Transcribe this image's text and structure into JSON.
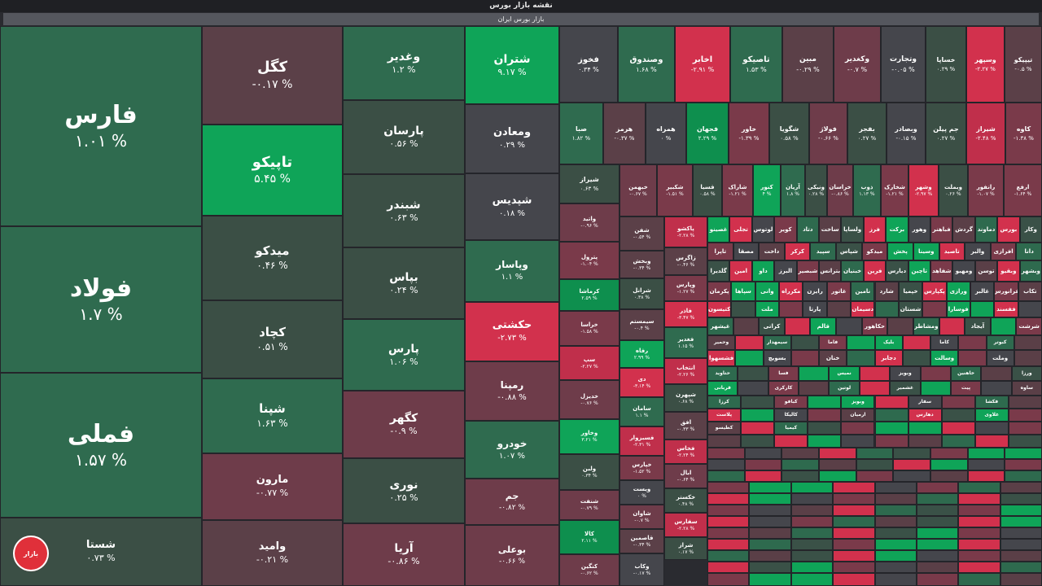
{
  "header": {
    "title": "نقشه بازار بورس",
    "subtitle": "بازار بورس ایران"
  },
  "logo": {
    "text": "بازار",
    "color": "#e0303a"
  },
  "colors": {
    "strong_up": "#0fa458",
    "up": "#2e6a4e",
    "weak_up": "#3a5147",
    "neutral": "#45464c",
    "weak_down": "#5a3f47",
    "down": "#7a3a4a",
    "strong_down": "#d2314d"
  },
  "tiles": [
    {
      "name": "فارس",
      "change": "۱.۰۱ %",
      "color": "#2f6b4f"
    },
    {
      "name": "فولاد",
      "change": "۱.۷ %",
      "color": "#2f6b4f"
    },
    {
      "name": "فملی",
      "change": "۱.۵۷ %",
      "color": "#2f6b4f"
    },
    {
      "name": "شستا",
      "change": "۰.۷۳ %",
      "color": "#3b4f45"
    },
    {
      "name": "کگل",
      "change": "-۰.۱۷ %",
      "color": "#5b4048"
    },
    {
      "name": "تاپیکو",
      "change": "۵.۴۵ %",
      "color": "#0fa458"
    },
    {
      "name": "میدکو",
      "change": "۰.۴۶ %",
      "color": "#3b4f45"
    },
    {
      "name": "کچاد",
      "change": "۰.۵۱ %",
      "color": "#3b4f45"
    },
    {
      "name": "شپنا",
      "change": "۱.۶۳ %",
      "color": "#2f6b4f"
    },
    {
      "name": "مارون",
      "change": "-۰.۷۷ %",
      "color": "#6e3c4a"
    },
    {
      "name": "وامید",
      "change": "-۰.۲۱ %",
      "color": "#5b4048"
    },
    {
      "name": "وغدیر",
      "change": "۱.۲ %",
      "color": "#2f6b4f"
    },
    {
      "name": "پارسان",
      "change": "۰.۵۶ %",
      "color": "#3b4f45"
    },
    {
      "name": "شبندر",
      "change": "۰.۶۳ %",
      "color": "#3b4f45"
    },
    {
      "name": "بپاس",
      "change": "۰.۲۴ %",
      "color": "#3b4f45"
    },
    {
      "name": "پارس",
      "change": "۱.۰۶ %",
      "color": "#2f6b4f"
    },
    {
      "name": "کگهر",
      "change": "-۰.۹ %",
      "color": "#6e3c4a"
    },
    {
      "name": "نوری",
      "change": "۰.۲۵ %",
      "color": "#3b4f45"
    },
    {
      "name": "آریا",
      "change": "-۰.۸۶ %",
      "color": "#6e3c4a"
    },
    {
      "name": "شتران",
      "change": "۹.۱۷ %",
      "color": "#0fa458"
    },
    {
      "name": "ومعادن",
      "change": "۰.۲۹ %",
      "color": "#45464c"
    },
    {
      "name": "شپدیس",
      "change": "۰.۱۸ %",
      "color": "#45464c"
    },
    {
      "name": "وپاسار",
      "change": "۱.۱ %",
      "color": "#2f6b4f"
    },
    {
      "name": "حکشتی",
      "change": "-۲.۷۳ %",
      "color": "#d2314d"
    },
    {
      "name": "رمپنا",
      "change": "-۰.۸۸ %",
      "color": "#6e3c4a"
    },
    {
      "name": "خودرو",
      "change": "۱.۰۷ %",
      "color": "#2f6b4f"
    },
    {
      "name": "جم",
      "change": "-۰.۸۲ %",
      "color": "#6e3c4a"
    },
    {
      "name": "بوعلی",
      "change": "-۰.۶۶ %",
      "color": "#6e3c4a"
    },
    {
      "name": "فخوز",
      "change": "۰.۳۴ %",
      "color": "#45464c"
    },
    {
      "name": "وصندوق",
      "change": "۱.۶۸ %",
      "color": "#2f6b4f"
    },
    {
      "name": "اخابر",
      "change": "-۲.۹۱ %",
      "color": "#d2314d"
    },
    {
      "name": "تاصیکو",
      "change": "۱.۵۳ %",
      "color": "#2f6b4f"
    },
    {
      "name": "مبین",
      "change": "-۰.۲۹ %",
      "color": "#5b4048"
    },
    {
      "name": "وکغدیر",
      "change": "-۰.۷ %",
      "color": "#6e3c4a"
    },
    {
      "name": "وتجارت",
      "change": "-۰.۰۵ %",
      "color": "#45464c"
    },
    {
      "name": "خساپا",
      "change": "۰.۲۹ %",
      "color": "#3b4f45"
    },
    {
      "name": "وسپهر",
      "change": "-۲.۲۷ %",
      "color": "#d2314d"
    },
    {
      "name": "تیپیکو",
      "change": "-۰.۵ %",
      "color": "#5b4048"
    },
    {
      "name": "صبا",
      "change": "۱.۸۲ %",
      "color": "#2f6b4f"
    },
    {
      "name": "هرمز",
      "change": "-۰.۳۷ %",
      "color": "#5b4048"
    },
    {
      "name": "همراه",
      "change": "۰ %",
      "color": "#45464c"
    },
    {
      "name": "فجهان",
      "change": "۲.۲۹ %",
      "color": "#0e8f4e"
    },
    {
      "name": "خاور",
      "change": "-۱.۳۹ %",
      "color": "#7a3a4a"
    },
    {
      "name": "شگویا",
      "change": "۰.۵۸ %",
      "color": "#3b4f45"
    },
    {
      "name": "فولاژ",
      "change": "-۰.۶۶ %",
      "color": "#6e3c4a"
    },
    {
      "name": "بفجر",
      "change": "۰.۲۷ %",
      "color": "#3b4f45"
    },
    {
      "name": "وبصادر",
      "change": "-۰.۱۵ %",
      "color": "#45464c"
    },
    {
      "name": "جم پیلن",
      "change": "۰.۲۷ %",
      "color": "#3b4f45"
    },
    {
      "name": "شیراز",
      "change": "-۲.۴۸ %",
      "color": "#c02f4b"
    },
    {
      "name": "کاوه",
      "change": "-۱.۳۸ %",
      "color": "#7a3a4a"
    },
    {
      "name": "شیراز",
      "change": "۰.۶۳ %",
      "color": "#3b4f45"
    },
    {
      "name": "خبهمن",
      "change": "-۰.۶۷ %",
      "color": "#6e3c4a"
    },
    {
      "name": "شکبیر",
      "change": "-۱.۵۱ %",
      "color": "#7a3a4a"
    },
    {
      "name": "قسیا",
      "change": "۰.۵۸ %",
      "color": "#3b4f45"
    },
    {
      "name": "شاراک",
      "change": "-۱.۲۱ %",
      "color": "#7a3a4a"
    },
    {
      "name": "کنور",
      "change": "۴ %",
      "color": "#0fa458"
    },
    {
      "name": "آریان",
      "change": "۱.۸ %",
      "color": "#2f6b4f"
    },
    {
      "name": "ونیکی",
      "change": "۰.۲۸ %",
      "color": "#3b4f45"
    },
    {
      "name": "خراسان",
      "change": "-۰.۸۶ %",
      "color": "#6e3c4a"
    },
    {
      "name": "ذوب",
      "change": "۱.۱۳ %",
      "color": "#2f6b4f"
    },
    {
      "name": "شخارک",
      "change": "-۱.۲۱ %",
      "color": "#7a3a4a"
    },
    {
      "name": "وشهر",
      "change": "-۲.۹۷ %",
      "color": "#d2314d"
    },
    {
      "name": "وبملت",
      "change": "۰.۲۶ %",
      "color": "#3b4f45"
    },
    {
      "name": "رانفور",
      "change": "-۱.۰۷ %",
      "color": "#7a3a4a"
    },
    {
      "name": "ارفع",
      "change": "-۱.۶۴ %",
      "color": "#7a3a4a"
    },
    {
      "name": "واتید",
      "change": "-۰.۹۶ %",
      "color": "#6e3c4a"
    },
    {
      "name": "شفن",
      "change": "-۰.۵۴ %",
      "color": "#5b4048"
    },
    {
      "name": "پاکشو",
      "change": "-۲.۲۸ %",
      "color": "#c02f4b"
    },
    {
      "name": "پترول",
      "change": "-۱.۰۴ %",
      "color": "#7a3a4a"
    },
    {
      "name": "وبخش",
      "change": "-۰.۳۴ %",
      "color": "#5b4048"
    },
    {
      "name": "زاگرس",
      "change": "-۰.۴۶ %",
      "color": "#5b4048"
    },
    {
      "name": "کرماشا",
      "change": "۲.۵۹ %",
      "color": "#0e8f4e"
    },
    {
      "name": "شرانل",
      "change": "۰.۳۸ %",
      "color": "#3b4f45"
    },
    {
      "name": "وپارس",
      "change": "-۱.۲۷ %",
      "color": "#7a3a4a"
    },
    {
      "name": "خراسا",
      "change": "-۱.۵۸ %",
      "color": "#7a3a4a"
    },
    {
      "name": "سیمستم",
      "change": "-۰.۴ %",
      "color": "#5b4048"
    },
    {
      "name": "فاذر",
      "change": "-۳.۴۷ %",
      "color": "#d2314d"
    },
    {
      "name": "سپ",
      "change": "-۲.۲۷ %",
      "color": "#c02f4b"
    },
    {
      "name": "رفاه",
      "change": "۲.۹۹ %",
      "color": "#0fa458"
    },
    {
      "name": "فغدیر",
      "change": "۱.۱۵ %",
      "color": "#2f6b4f"
    },
    {
      "name": "خدیزل",
      "change": "-۰.۷۶ %",
      "color": "#6e3c4a"
    },
    {
      "name": "دی",
      "change": "-۳.۱۴ %",
      "color": "#d2314d"
    },
    {
      "name": "انتخاب",
      "change": "-۲.۲۶ %",
      "color": "#c02f4b"
    },
    {
      "name": "وخاور",
      "change": "۳.۲۱ %",
      "color": "#0fa458"
    },
    {
      "name": "سامان",
      "change": "۱.۱ %",
      "color": "#2f6b4f"
    },
    {
      "name": "شپهرن",
      "change": "۰.۶۸ %",
      "color": "#3b4f45"
    },
    {
      "name": "ولبن",
      "change": "۰.۳۴ %",
      "color": "#3b4f45"
    },
    {
      "name": "فسبزوار",
      "change": "-۲.۳۱ %",
      "color": "#c02f4b"
    },
    {
      "name": "افق",
      "change": "-۰.۳۳ %",
      "color": "#5b4048"
    },
    {
      "name": "شنفت",
      "change": "-۰.۷۹ %",
      "color": "#6e3c4a"
    },
    {
      "name": "خپارس",
      "change": "-۱.۵۲ %",
      "color": "#7a3a4a"
    },
    {
      "name": "فخاس",
      "change": "-۲.۲۴ %",
      "color": "#c02f4b"
    },
    {
      "name": "کالا",
      "change": "۲.۱۱ %",
      "color": "#0e8f4e"
    },
    {
      "name": "ویست",
      "change": "۰ %",
      "color": "#45464c"
    },
    {
      "name": "ابال",
      "change": "-۰.۶۴ %",
      "color": "#6e3c4a"
    },
    {
      "name": "کنگین",
      "change": "-۰.۶۲ %",
      "color": "#6e3c4a"
    },
    {
      "name": "شاوان",
      "change": "-۰.۷ %",
      "color": "#6e3c4a"
    },
    {
      "name": "خکستر",
      "change": "۰.۴۸ %",
      "color": "#3b4f45"
    },
    {
      "name": "قاصمین",
      "change": "-۰.۳۴ %",
      "color": "#5b4048"
    },
    {
      "name": "سفارس",
      "change": "-۲.۲۸ %",
      "color": "#c02f4b"
    },
    {
      "name": "وکاب",
      "change": "-۰.۱۷ %",
      "color": "#45464c"
    },
    {
      "name": "شراز",
      "change": "۰.۱۷ %",
      "color": "#3b4f45"
    }
  ],
  "small_labels": [
    "غصینو",
    "تجلی",
    "لوتوس",
    "کویر",
    "دتاد",
    "ساخت",
    "ولساپا",
    "فرز",
    "برکت",
    "وهور",
    "فباهنر",
    "گردش",
    "دماوند",
    "بورس",
    "وکار",
    "تاپرا",
    "مصقا",
    "داخت",
    "کرکر",
    "سپید",
    "شپاس",
    "میدکو",
    "پخش",
    "وسینا",
    "تاصید",
    "والبر",
    "افرازی",
    "دانا",
    "گلدیرا",
    "امین",
    "داو",
    "البرز",
    "شبصیر",
    "بترانس",
    "خبنیان",
    "فرین",
    "دیارس",
    "تاچین",
    "شفاهد",
    "ومهیو",
    "توسن",
    "وبقیو",
    "وبشهر",
    "پکرمان",
    "سپاها",
    "وانی",
    "مکرراه",
    "رایزن",
    "غاتور",
    "نامین",
    "شارد",
    "خپمیا",
    "پکپارس",
    "ورازی",
    "غالبر",
    "فرانورس",
    "تکاب",
    "کتیسون",
    "ملت",
    "پارتا",
    "دسیمان",
    "شستان",
    "فوسارا",
    "ففسند",
    "غيشهر",
    "کراتی",
    "قالم",
    "حکاهور",
    "ومشاطر",
    "آیجاد",
    "شرشت",
    "وحمیر",
    "سیمهدار",
    "فاما",
    "بلیک",
    "کاما",
    "کبوتر",
    "فشسهوا",
    "بسویچ",
    "خنان",
    "دجابر",
    "وسالت",
    "وملت",
    "حتاوید",
    "فسا",
    "نمیس",
    "وبویز",
    "خاهنین",
    "ورزا",
    "قربانی",
    "کارکری",
    "لوتین",
    "غشمیر",
    "پیت",
    "ساوه",
    "کرزا",
    "کبافو",
    "وبویز",
    "سفار",
    "فکشا",
    "پلاست",
    "کالیکا",
    "ارمیان",
    "دهارس",
    "غلاوی",
    "کطیسو",
    "کیمیا"
  ]
}
